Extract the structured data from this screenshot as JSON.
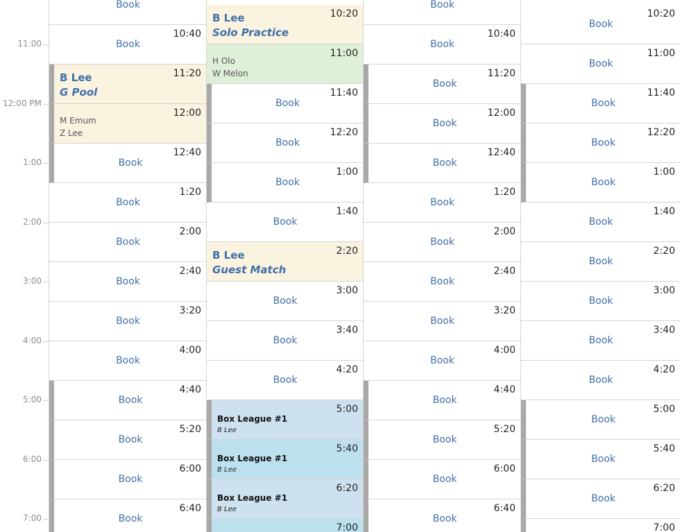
{
  "hour_labels": [
    "11:00",
    "12:00 PM",
    "1:00",
    "2:00",
    "3:00",
    "4:00",
    "5:00",
    "6:00",
    "7:00"
  ],
  "book_label": "Book",
  "courts": [
    {
      "slots": [
        {
          "time": "",
          "type": "book"
        },
        {
          "time": "10:40",
          "type": "book"
        },
        {
          "time": "11:20",
          "type": "booking",
          "style": "yellow",
          "bar": true,
          "name": "B Lee",
          "title": "G Pool"
        },
        {
          "time": "12:00",
          "type": "booking",
          "style": "yellow",
          "bar": true,
          "players": [
            "M Emum",
            "Z Lee"
          ]
        },
        {
          "time": "12:40",
          "type": "book",
          "bar": true
        },
        {
          "time": "1:20",
          "type": "book"
        },
        {
          "time": "2:00",
          "type": "book"
        },
        {
          "time": "2:40",
          "type": "book"
        },
        {
          "time": "3:20",
          "type": "book"
        },
        {
          "time": "4:00",
          "type": "book"
        },
        {
          "time": "4:40",
          "type": "book",
          "bar": true
        },
        {
          "time": "5:20",
          "type": "book",
          "bar": true
        },
        {
          "time": "6:00",
          "type": "book",
          "bar": true
        },
        {
          "time": "6:40",
          "type": "book",
          "bar": true
        }
      ]
    },
    {
      "slots": [
        {
          "time": "10:20",
          "type": "booking",
          "style": "yellow",
          "name": "B Lee",
          "title": "Solo Practice"
        },
        {
          "time": "11:00",
          "type": "booking",
          "style": "green",
          "players": [
            "H Olo",
            "W Melon"
          ]
        },
        {
          "time": "11:40",
          "type": "book",
          "bar": true
        },
        {
          "time": "12:20",
          "type": "book",
          "bar": true
        },
        {
          "time": "1:00",
          "type": "book",
          "bar": true
        },
        {
          "time": "1:40",
          "type": "book"
        },
        {
          "time": "2:20",
          "type": "booking",
          "style": "yellow",
          "name": "B Lee",
          "title": "Guest Match"
        },
        {
          "time": "3:00",
          "type": "book"
        },
        {
          "time": "3:40",
          "type": "book"
        },
        {
          "time": "4:20",
          "type": "book"
        },
        {
          "time": "5:00",
          "type": "league",
          "style": "blue-a",
          "bar": true,
          "league": "Box League #1",
          "owner": "B Lee"
        },
        {
          "time": "5:40",
          "type": "league",
          "style": "blue-b",
          "bar": true,
          "league": "Box League #1",
          "owner": "B Lee"
        },
        {
          "time": "6:20",
          "type": "league",
          "style": "blue-a",
          "bar": true,
          "league": "Box League #1",
          "owner": "B Lee"
        },
        {
          "time": "7:00",
          "type": "league",
          "style": "blue-b",
          "bar": true,
          "league": "",
          "owner": ""
        }
      ]
    },
    {
      "slots": [
        {
          "time": "",
          "type": "book"
        },
        {
          "time": "10:40",
          "type": "book"
        },
        {
          "time": "11:20",
          "type": "book",
          "bar": true
        },
        {
          "time": "12:00",
          "type": "book",
          "bar": true
        },
        {
          "time": "12:40",
          "type": "book",
          "bar": true
        },
        {
          "time": "1:20",
          "type": "book"
        },
        {
          "time": "2:00",
          "type": "book"
        },
        {
          "time": "2:40",
          "type": "book"
        },
        {
          "time": "3:20",
          "type": "book"
        },
        {
          "time": "4:00",
          "type": "book"
        },
        {
          "time": "4:40",
          "type": "book",
          "bar": true
        },
        {
          "time": "5:20",
          "type": "book",
          "bar": true
        },
        {
          "time": "6:00",
          "type": "book",
          "bar": true
        },
        {
          "time": "6:40",
          "type": "book",
          "bar": true
        }
      ]
    },
    {
      "slots": [
        {
          "time": "10:20",
          "type": "book"
        },
        {
          "time": "11:00",
          "type": "book"
        },
        {
          "time": "11:40",
          "type": "book",
          "bar": true
        },
        {
          "time": "12:20",
          "type": "book",
          "bar": true
        },
        {
          "time": "1:00",
          "type": "book",
          "bar": true
        },
        {
          "time": "1:40",
          "type": "book"
        },
        {
          "time": "2:20",
          "type": "book"
        },
        {
          "time": "3:00",
          "type": "book"
        },
        {
          "time": "3:40",
          "type": "book"
        },
        {
          "time": "4:20",
          "type": "book"
        },
        {
          "time": "5:00",
          "type": "book",
          "bar": true
        },
        {
          "time": "5:40",
          "type": "book",
          "bar": true
        },
        {
          "time": "6:20",
          "type": "book",
          "bar": true
        },
        {
          "time": "7:00",
          "type": "book",
          "bar": true
        }
      ]
    }
  ]
}
